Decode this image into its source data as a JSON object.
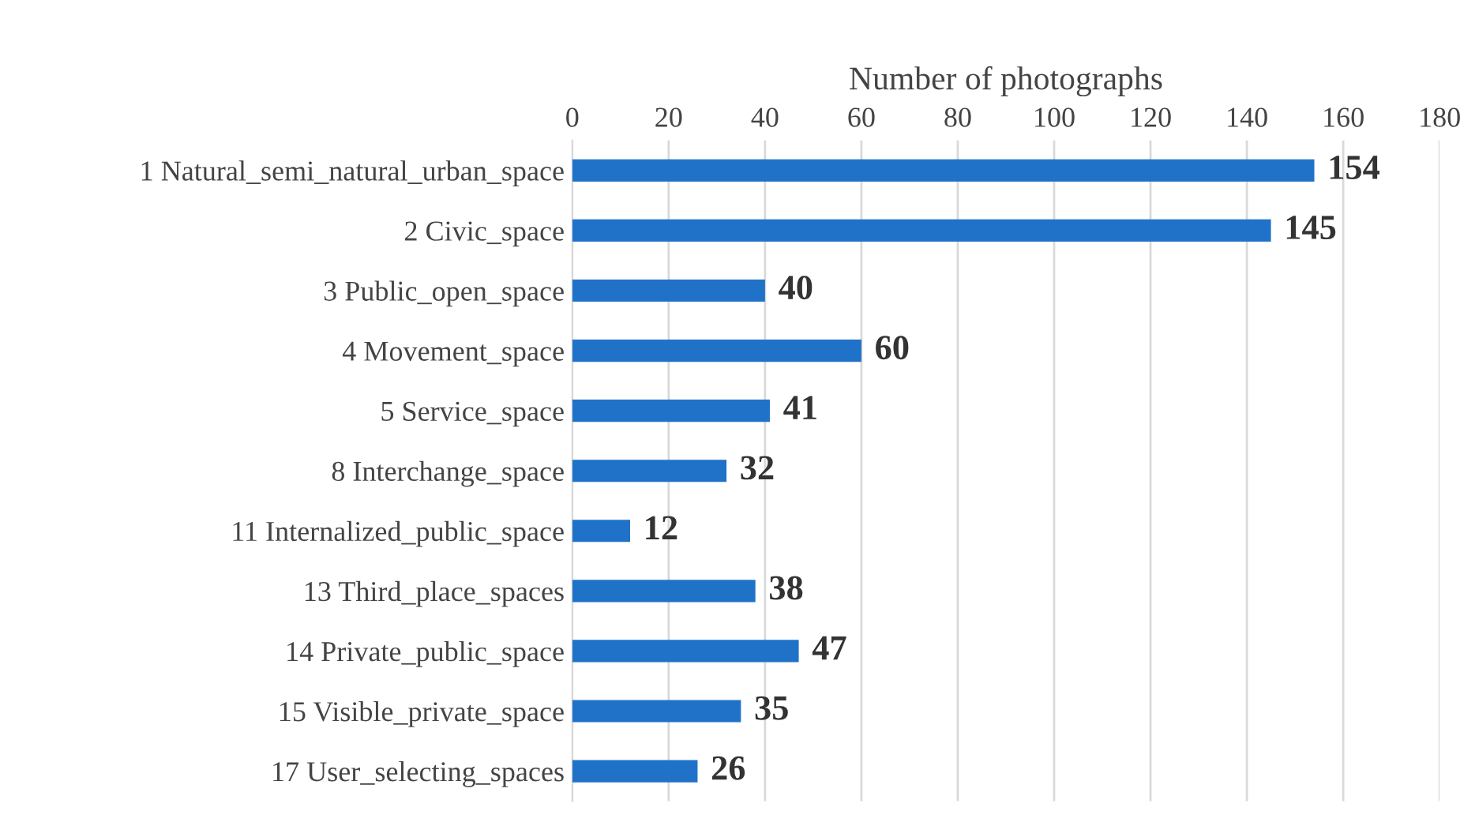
{
  "chart_data": {
    "type": "bar",
    "orientation": "horizontal",
    "xlabel": "Number of photographs",
    "categories": [
      "1 Natural_semi_natural_urban_space",
      "2 Civic_space",
      "3 Public_open_space",
      "4 Movement_space",
      "5 Service_space",
      "8 Interchange_space",
      "11 Internalized_public_space",
      "13 Third_place_spaces",
      "14 Private_public_space",
      "15 Visible_private_space",
      "17 User_selecting_spaces"
    ],
    "values": [
      154,
      145,
      40,
      60,
      41,
      32,
      12,
      38,
      47,
      35,
      26
    ],
    "color": "#1f72c8",
    "xlim": [
      0,
      180
    ],
    "xticks": [
      0,
      20,
      40,
      60,
      80,
      100,
      120,
      140,
      160,
      180
    ],
    "grid": "x",
    "data_labels": true,
    "legend": false
  }
}
